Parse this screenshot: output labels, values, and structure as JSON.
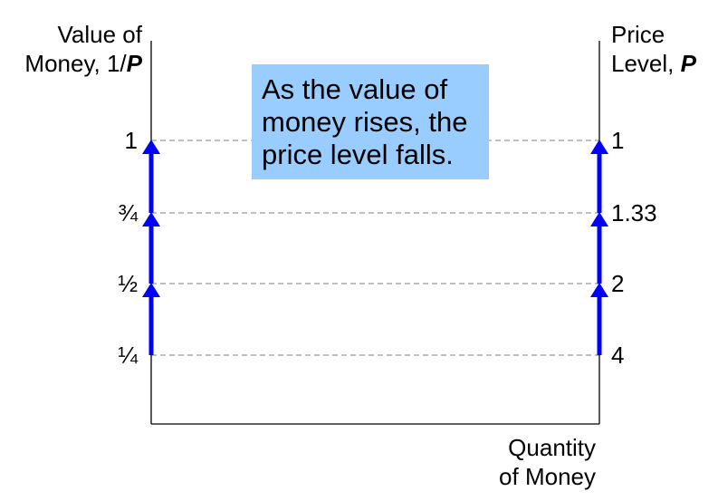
{
  "left_axis": {
    "title_line1": "Value of",
    "title_line2_prefix": "Money, 1/",
    "title_line2_var": "P"
  },
  "right_axis": {
    "title_line1": "Price",
    "title_line2_prefix": "Level, ",
    "title_line2_var": "P"
  },
  "x_axis": {
    "title_line1": "Quantity",
    "title_line2": "of Money"
  },
  "levels": [
    {
      "value_label": "1",
      "price_label": "1"
    },
    {
      "value_label": "¾",
      "price_label": "1.33"
    },
    {
      "value_label": "½",
      "price_label": "2"
    },
    {
      "value_label": "¼",
      "price_label": "4"
    }
  ],
  "callout": {
    "text": "As the value of money rises, the price level falls."
  },
  "colors": {
    "arrow": "#0000ff",
    "callout_bg": "#99ccff",
    "dash": "#999999",
    "axis": "#000000"
  }
}
